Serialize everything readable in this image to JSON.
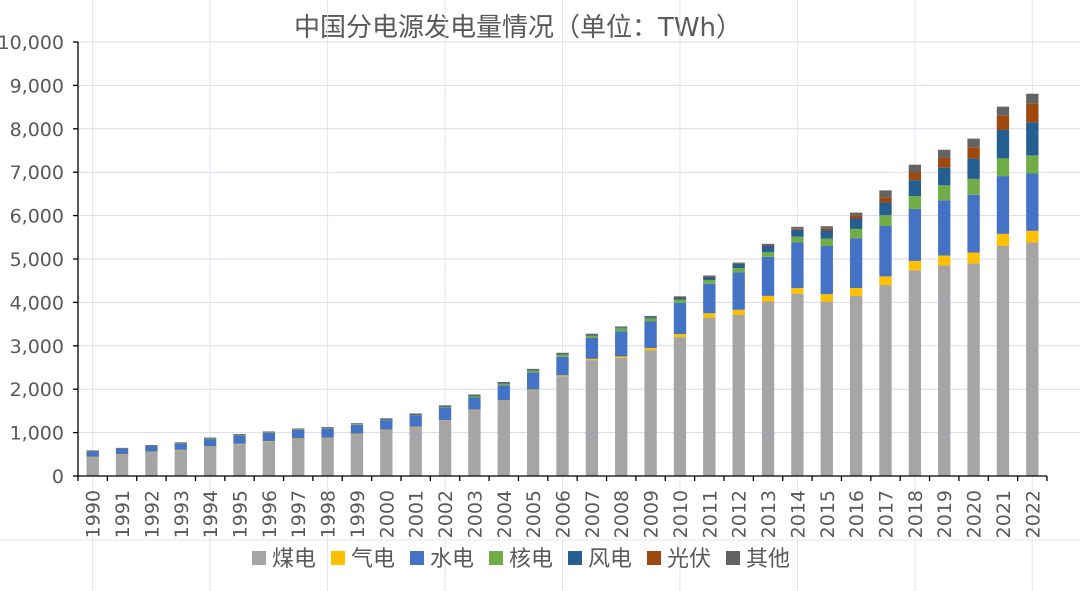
{
  "chart_data": {
    "type": "bar",
    "stacked": true,
    "title": "中国分电源发电量情况（单位：TWh）",
    "xlabel": "",
    "ylabel": "",
    "ylim": [
      0,
      10000
    ],
    "yticks": [
      0,
      1000,
      2000,
      3000,
      4000,
      5000,
      6000,
      7000,
      8000,
      9000,
      10000
    ],
    "ytick_labels": [
      "0",
      "1,000",
      "2,000",
      "3,000",
      "4,000",
      "5,000",
      "6,000",
      "7,000",
      "8,000",
      "9,000",
      "10,000"
    ],
    "grid": true,
    "legend_position": "bottom",
    "categories": [
      "1990",
      "1991",
      "1992",
      "1993",
      "1994",
      "1995",
      "1996",
      "1997",
      "1998",
      "1999",
      "2000",
      "2001",
      "2002",
      "2003",
      "2004",
      "2005",
      "2006",
      "2007",
      "2008",
      "2009",
      "2010",
      "2011",
      "2012",
      "2013",
      "2014",
      "2015",
      "2016",
      "2017",
      "2018",
      "2019",
      "2020",
      "2021",
      "2022"
    ],
    "series": [
      {
        "name": "煤电",
        "color": "#a5a5a5",
        "values": [
          440,
          500,
          560,
          600,
          680,
          740,
          800,
          860,
          880,
          970,
          1060,
          1130,
          1280,
          1520,
          1730,
          1980,
          2300,
          2670,
          2720,
          2900,
          3200,
          3650,
          3710,
          4020,
          4200,
          4020,
          4150,
          4400,
          4740,
          4850,
          4900,
          5300,
          5380
        ]
      },
      {
        "name": "气电",
        "color": "#ffc000",
        "values": [
          3,
          3,
          3,
          3,
          3,
          4,
          4,
          5,
          5,
          6,
          6,
          6,
          7,
          9,
          11,
          13,
          20,
          30,
          35,
          50,
          70,
          100,
          120,
          130,
          130,
          170,
          180,
          200,
          215,
          230,
          250,
          280,
          270
        ]
      },
      {
        "name": "水电",
        "color": "#4472c4",
        "values": [
          127,
          125,
          130,
          150,
          168,
          190,
          188,
          196,
          208,
          205,
          220,
          261,
          290,
          280,
          350,
          390,
          430,
          480,
          580,
          610,
          720,
          680,
          860,
          900,
          1050,
          1110,
          1150,
          1160,
          1200,
          1270,
          1330,
          1330,
          1320
        ]
      },
      {
        "name": "核电",
        "color": "#70ad47",
        "values": [
          0,
          0,
          0,
          2,
          14,
          13,
          14,
          14,
          14,
          15,
          17,
          17,
          25,
          43,
          50,
          53,
          55,
          62,
          68,
          70,
          74,
          87,
          98,
          112,
          133,
          171,
          213,
          248,
          295,
          348,
          366,
          408,
          418
        ]
      },
      {
        "name": "风电",
        "color": "#255e91",
        "values": [
          0,
          0,
          0,
          0,
          0,
          0,
          0,
          0,
          0,
          0,
          1,
          1,
          1,
          1,
          1,
          2,
          4,
          6,
          13,
          28,
          45,
          70,
          96,
          140,
          160,
          185,
          240,
          295,
          366,
          406,
          467,
          656,
          762
        ]
      },
      {
        "name": "光伏",
        "color": "#9e480e",
        "values": [
          0,
          0,
          0,
          0,
          0,
          0,
          0,
          0,
          0,
          0,
          0,
          0,
          0,
          0,
          0,
          0,
          0,
          0,
          0,
          0,
          1,
          3,
          4,
          8,
          23,
          39,
          66,
          118,
          177,
          224,
          261,
          327,
          428
        ]
      },
      {
        "name": "其他",
        "color": "#636363",
        "values": [
          20,
          20,
          20,
          20,
          20,
          20,
          20,
          20,
          20,
          20,
          25,
          25,
          25,
          25,
          25,
          30,
          30,
          30,
          30,
          30,
          30,
          30,
          30,
          40,
          45,
          60,
          70,
          160,
          180,
          190,
          200,
          210,
          230
        ]
      }
    ]
  }
}
